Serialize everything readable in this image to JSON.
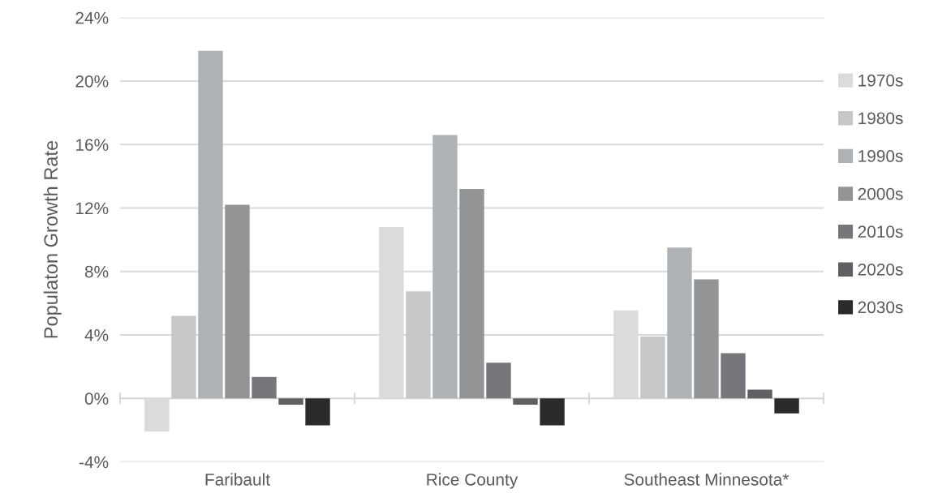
{
  "chart_data": {
    "type": "bar",
    "ylabel": "Populaton Growth Rate",
    "categories": [
      "Faribault",
      "Rice County",
      "Southeast Minnesota*"
    ],
    "series": [
      {
        "name": "1970s",
        "color": "#dadbdd",
        "values": [
          -2.1,
          10.8,
          5.55
        ]
      },
      {
        "name": "1980s",
        "color": "#c6c7c9",
        "values": [
          5.2,
          6.75,
          3.9
        ]
      },
      {
        "name": "1990s",
        "color": "#afb2b5",
        "values": [
          21.9,
          16.6,
          9.5
        ]
      },
      {
        "name": "2000s",
        "color": "#939496",
        "values": [
          12.2,
          13.2,
          7.5
        ]
      },
      {
        "name": "2010s",
        "color": "#76777a",
        "values": [
          1.35,
          2.25,
          2.85
        ]
      },
      {
        "name": "2020s",
        "color": "#5f6063",
        "values": [
          -0.4,
          -0.4,
          0.55
        ]
      },
      {
        "name": "2030s",
        "color": "#2b2b2b",
        "values": [
          -1.7,
          -1.7,
          -0.95
        ]
      }
    ],
    "ylim": [
      -4,
      24
    ],
    "yticks": [
      {
        "value": -4,
        "label": "-4%"
      },
      {
        "value": 0,
        "label": "0%"
      },
      {
        "value": 4,
        "label": "4%"
      },
      {
        "value": 8,
        "label": "8%"
      },
      {
        "value": 12,
        "label": "12%"
      },
      {
        "value": 16,
        "label": "16%"
      },
      {
        "value": 20,
        "label": "20%"
      },
      {
        "value": 24,
        "label": "24%"
      }
    ],
    "grid": "y",
    "legend": "right"
  }
}
